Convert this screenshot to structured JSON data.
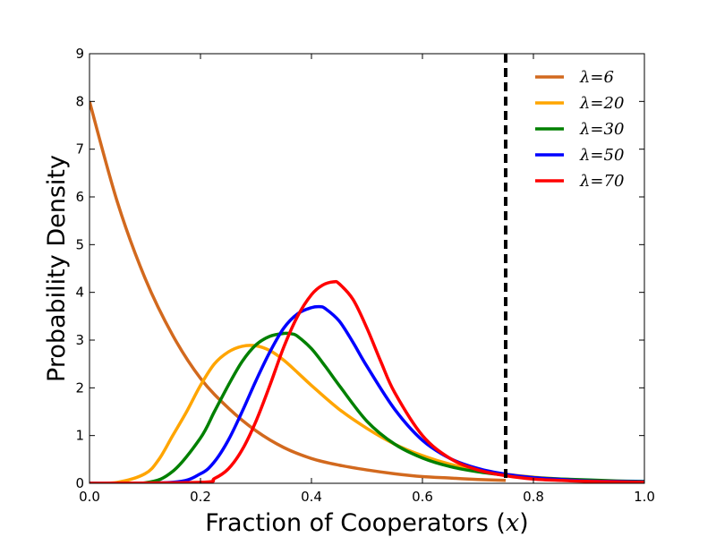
{
  "chart_data": {
    "type": "line",
    "xlabel": "Fraction of Cooperators (x)",
    "ylabel": "Probability Density",
    "xlim": [
      0.0,
      1.0
    ],
    "ylim": [
      0,
      9
    ],
    "x_ticks": [
      "0.0",
      "0.2",
      "0.4",
      "0.6",
      "0.8",
      "1.0"
    ],
    "y_ticks": [
      "0",
      "1",
      "2",
      "3",
      "4",
      "5",
      "6",
      "7",
      "8",
      "9"
    ],
    "grid": false,
    "legend_position": "top-right",
    "reference_line": {
      "x": 0.75,
      "style": "dashed",
      "color": "#000000"
    },
    "series": [
      {
        "name": "λ=6",
        "color": "#d2691e",
        "x": [
          0.0,
          0.05,
          0.1,
          0.15,
          0.2,
          0.25,
          0.3,
          0.35,
          0.4,
          0.45,
          0.5,
          0.55,
          0.6,
          0.65,
          0.7,
          0.75
        ],
        "y": [
          8.0,
          5.9,
          4.3,
          3.1,
          2.2,
          1.58,
          1.1,
          0.75,
          0.52,
          0.38,
          0.28,
          0.2,
          0.14,
          0.11,
          0.08,
          0.06
        ]
      },
      {
        "name": "λ=20",
        "color": "#ffa500",
        "x": [
          0.0,
          0.05,
          0.1,
          0.125,
          0.15,
          0.175,
          0.2,
          0.225,
          0.25,
          0.275,
          0.3,
          0.325,
          0.35,
          0.375,
          0.4,
          0.45,
          0.5,
          0.55,
          0.6,
          0.65,
          0.7,
          0.75,
          0.8,
          0.85,
          0.9,
          0.95,
          1.0
        ],
        "y": [
          0.0,
          0.02,
          0.2,
          0.5,
          1.0,
          1.5,
          2.05,
          2.5,
          2.75,
          2.87,
          2.88,
          2.78,
          2.58,
          2.32,
          2.05,
          1.55,
          1.15,
          0.82,
          0.58,
          0.4,
          0.28,
          0.19,
          0.13,
          0.09,
          0.06,
          0.04,
          0.03
        ]
      },
      {
        "name": "λ=30",
        "color": "#008000",
        "x": [
          0.0,
          0.1,
          0.15,
          0.2,
          0.225,
          0.25,
          0.275,
          0.3,
          0.325,
          0.35,
          0.365,
          0.375,
          0.4,
          0.425,
          0.45,
          0.5,
          0.55,
          0.6,
          0.65,
          0.7,
          0.75,
          0.8,
          0.85,
          0.9,
          0.95,
          1.0
        ],
        "y": [
          0.0,
          0.01,
          0.25,
          0.95,
          1.5,
          2.05,
          2.55,
          2.9,
          3.08,
          3.14,
          3.13,
          3.08,
          2.82,
          2.45,
          2.05,
          1.3,
          0.82,
          0.53,
          0.35,
          0.24,
          0.17,
          0.12,
          0.09,
          0.07,
          0.05,
          0.04
        ]
      },
      {
        "name": "λ=50",
        "color": "#0000ff",
        "x": [
          0.0,
          0.15,
          0.2,
          0.225,
          0.25,
          0.275,
          0.3,
          0.325,
          0.35,
          0.375,
          0.4,
          0.415,
          0.425,
          0.45,
          0.475,
          0.5,
          0.55,
          0.6,
          0.65,
          0.7,
          0.75,
          0.8,
          0.85,
          0.9,
          0.95,
          1.0
        ],
        "y": [
          0.0,
          0.02,
          0.2,
          0.45,
          0.9,
          1.5,
          2.15,
          2.75,
          3.25,
          3.55,
          3.68,
          3.7,
          3.66,
          3.4,
          2.95,
          2.45,
          1.55,
          0.9,
          0.52,
          0.31,
          0.19,
          0.12,
          0.08,
          0.05,
          0.04,
          0.03
        ]
      },
      {
        "name": "λ=70",
        "color": "#ff0000",
        "x": [
          0.0,
          0.2,
          0.225,
          0.25,
          0.275,
          0.3,
          0.325,
          0.35,
          0.375,
          0.4,
          0.42,
          0.44,
          0.45,
          0.475,
          0.5,
          0.525,
          0.55,
          0.6,
          0.65,
          0.7,
          0.75,
          0.8,
          0.85,
          0.9,
          0.95,
          1.0
        ],
        "y": [
          0.0,
          0.02,
          0.1,
          0.3,
          0.7,
          1.3,
          2.05,
          2.85,
          3.5,
          3.95,
          4.15,
          4.22,
          4.18,
          3.85,
          3.25,
          2.55,
          1.9,
          1.0,
          0.52,
          0.28,
          0.16,
          0.09,
          0.06,
          0.04,
          0.03,
          0.02
        ]
      }
    ]
  }
}
